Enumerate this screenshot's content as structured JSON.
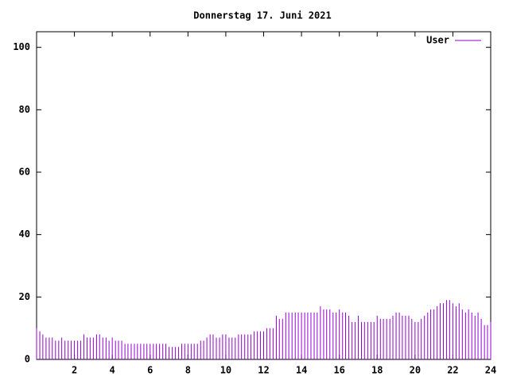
{
  "chart_data": {
    "type": "impulse",
    "title": "Donnerstag 17. Juni 2021",
    "xlim": [
      0,
      24
    ],
    "ylim": [
      0,
      105
    ],
    "xticks": [
      2,
      4,
      6,
      8,
      10,
      12,
      14,
      16,
      18,
      20,
      22,
      24
    ],
    "yticks": [
      0,
      20,
      40,
      60,
      80,
      100
    ],
    "legend": "top-right",
    "x": [
      0,
      0.17,
      0.33,
      0.5,
      0.67,
      0.83,
      1,
      1.17,
      1.33,
      1.5,
      1.67,
      1.83,
      2,
      2.17,
      2.33,
      2.5,
      2.67,
      2.83,
      3,
      3.17,
      3.33,
      3.5,
      3.67,
      3.83,
      4,
      4.17,
      4.33,
      4.5,
      4.67,
      4.83,
      5,
      5.17,
      5.33,
      5.5,
      5.67,
      5.83,
      6,
      6.17,
      6.33,
      6.5,
      6.67,
      6.83,
      7,
      7.17,
      7.33,
      7.5,
      7.67,
      7.83,
      8,
      8.17,
      8.33,
      8.5,
      8.67,
      8.83,
      9,
      9.17,
      9.33,
      9.5,
      9.67,
      9.83,
      10,
      10.17,
      10.33,
      10.5,
      10.67,
      10.83,
      11,
      11.17,
      11.33,
      11.5,
      11.67,
      11.83,
      12,
      12.17,
      12.33,
      12.5,
      12.67,
      12.83,
      13,
      13.17,
      13.33,
      13.5,
      13.67,
      13.83,
      14,
      14.17,
      14.33,
      14.5,
      14.67,
      14.83,
      15,
      15.17,
      15.33,
      15.5,
      15.67,
      15.83,
      16,
      16.17,
      16.33,
      16.5,
      16.67,
      16.83,
      17,
      17.17,
      17.33,
      17.5,
      17.67,
      17.83,
      18,
      18.17,
      18.33,
      18.5,
      18.67,
      18.83,
      19,
      19.17,
      19.33,
      19.5,
      19.67,
      19.83,
      20,
      20.17,
      20.33,
      20.5,
      20.67,
      20.83,
      21,
      21.17,
      21.33,
      21.5,
      21.67,
      21.83,
      22,
      22.17,
      22.33,
      22.5,
      22.67,
      22.83,
      23,
      23.17,
      23.33,
      23.5,
      23.67,
      23.83,
      24
    ],
    "series": [
      {
        "name": "User",
        "color": "#9400d3",
        "values": [
          10,
          9,
          8,
          7,
          7,
          7,
          6,
          6,
          7,
          6,
          6,
          6,
          6,
          6,
          6,
          8,
          7,
          7,
          7,
          8,
          8,
          7,
          7,
          6,
          7,
          6,
          6,
          6,
          5,
          5,
          5,
          5,
          5,
          5,
          5,
          5,
          5,
          5,
          5,
          5,
          5,
          5,
          4,
          4,
          4,
          4,
          5,
          5,
          5,
          5,
          5,
          5,
          6,
          6,
          7,
          8,
          8,
          7,
          7,
          8,
          8,
          7,
          7,
          7,
          8,
          8,
          8,
          8,
          8,
          9,
          9,
          9,
          9,
          10,
          10,
          10,
          14,
          13,
          13,
          15,
          15,
          15,
          15,
          15,
          15,
          15,
          15,
          15,
          15,
          15,
          17,
          16,
          16,
          16,
          15,
          15,
          16,
          15,
          15,
          14,
          12,
          12,
          14,
          12,
          12,
          12,
          12,
          12,
          14,
          13,
          13,
          13,
          13,
          14,
          15,
          15,
          14,
          14,
          14,
          13,
          12,
          12,
          13,
          14,
          15,
          16,
          16,
          17,
          18,
          18,
          19,
          19,
          18,
          17,
          18,
          16,
          15,
          16,
          15,
          14,
          15,
          13,
          11,
          11,
          12
        ]
      }
    ]
  }
}
